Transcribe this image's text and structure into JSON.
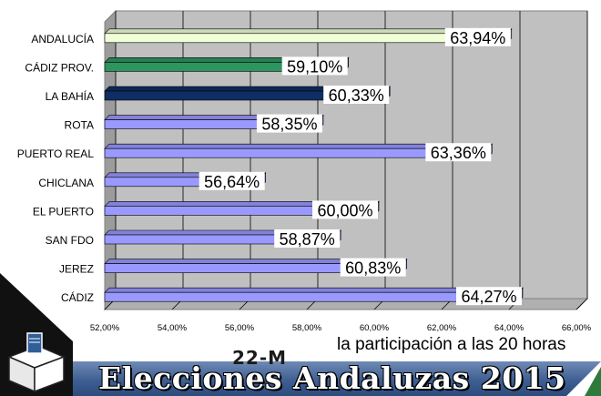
{
  "chart_data": {
    "type": "bar",
    "orientation": "horizontal",
    "categories": [
      "ANDALUCÍA",
      "CÁDIZ PROV.",
      "LA BAHÍA",
      "ROTA",
      "PUERTO REAL",
      "CHICLANA",
      "EL PUERTO",
      "SAN FDO",
      "JEREZ",
      "CÁDIZ"
    ],
    "values": [
      63.94,
      59.1,
      60.33,
      58.35,
      63.36,
      56.64,
      60.0,
      58.87,
      60.83,
      64.27
    ],
    "value_labels": [
      "63,94%",
      "59,10%",
      "60,33%",
      "58,35%",
      "63,36%",
      "56,64%",
      "60,00%",
      "58,87%",
      "60,83%",
      "64,27%"
    ],
    "bar_colors": [
      "#f0ffd8",
      "#2e9560",
      "#0f2e63",
      "#9999ff",
      "#9999ff",
      "#9999ff",
      "#9999ff",
      "#9999ff",
      "#9999ff",
      "#9999ff"
    ],
    "xlim": [
      52,
      66
    ],
    "x_ticks": [
      "52,00%",
      "54,00%",
      "56,00%",
      "58,00%",
      "60,00%",
      "62,00%",
      "64,00%",
      "66,00%"
    ],
    "grid": true,
    "plot_background": "#c0c0c0",
    "title": "",
    "xlabel": "",
    "ylabel": ""
  },
  "subtitle": "la participación a las 20 horas",
  "banner": {
    "date_tag": "22-M",
    "title": "Elecciones Andaluzas 2015",
    "color": "#3e5f93"
  }
}
